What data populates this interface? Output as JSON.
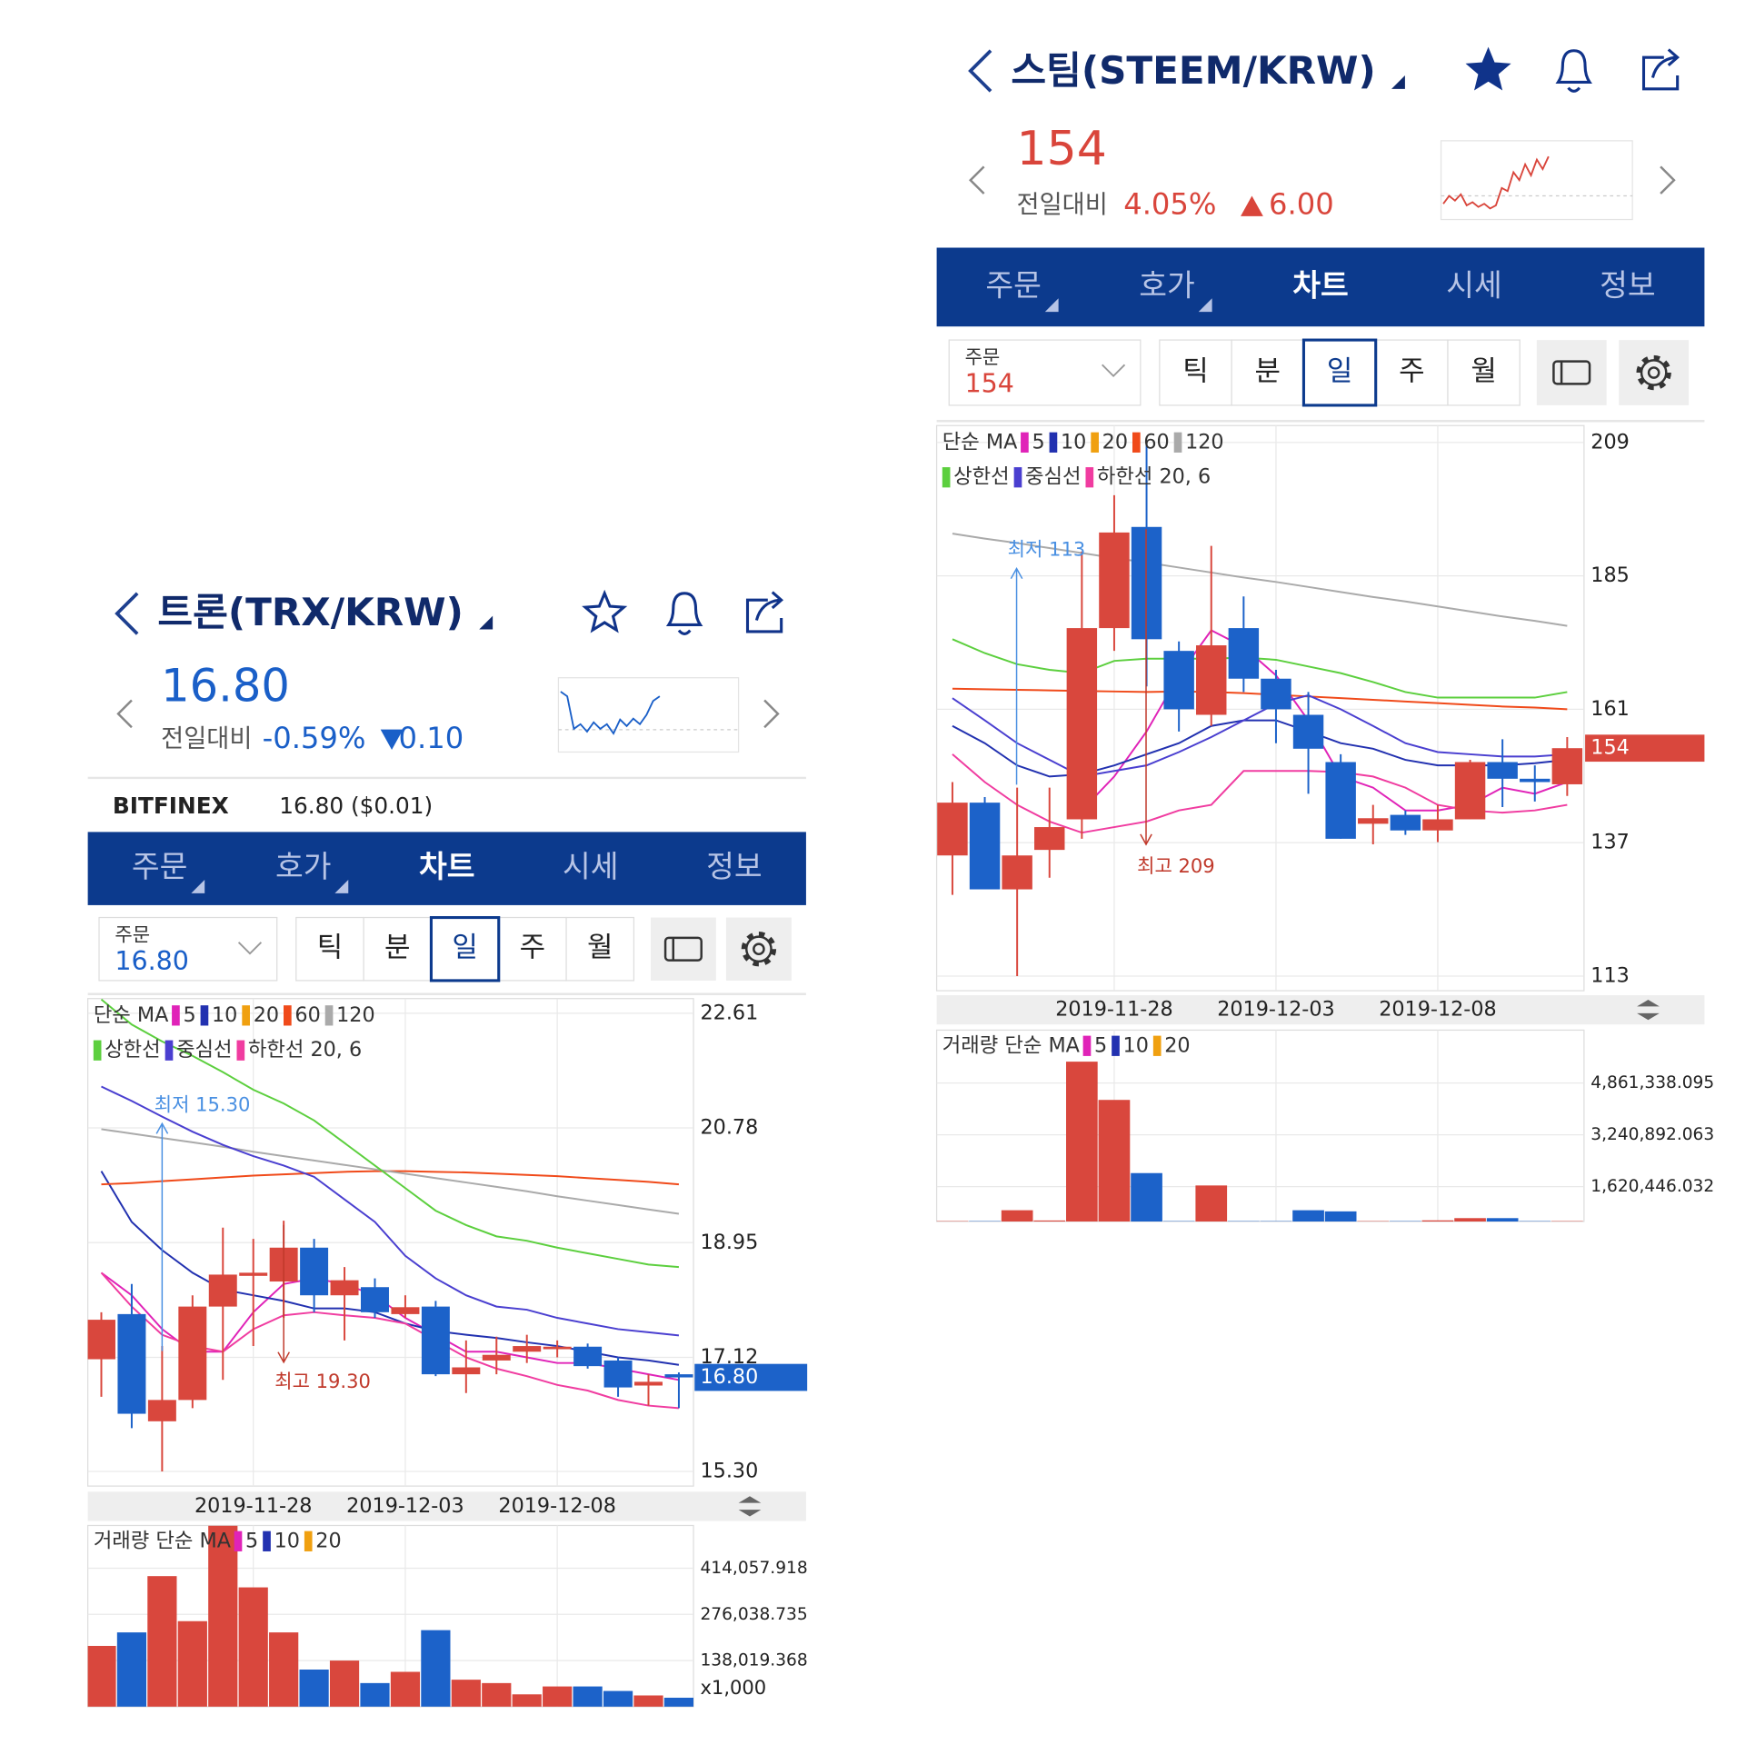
{
  "up_color": "#d9473d",
  "down_color": "#1c62c9",
  "panels": [
    {
      "title": "트론(TRX/KRW)",
      "price": "16.80",
      "price_color": "#1a5fc8",
      "change_label": "전일대비",
      "change_pct": "-0.59%",
      "change_abs": "0.10",
      "exchange": "BITFINEX",
      "exchange_price": "16.80 ($0.01)",
      "sparkline": {
        "values": [
          16.95,
          16.9,
          16.55,
          16.6,
          16.52,
          16.62,
          16.55,
          16.6,
          16.5,
          16.65,
          16.58,
          16.66,
          16.6,
          16.7,
          16.85,
          16.9
        ],
        "ylim": [
          16.3,
          17.1
        ]
      },
      "tabs": [
        "주문",
        "호가",
        "차트",
        "시세",
        "정보"
      ],
      "order_label": "주문",
      "order_price": "16.80",
      "periods": [
        "틱",
        "분",
        "일",
        "주",
        "월"
      ],
      "chart": {
        "type": "candlestick",
        "categories": [
          null,
          null,
          null,
          null,
          null,
          "2019-11-28",
          null,
          null,
          null,
          null,
          "2019-12-03",
          null,
          null,
          null,
          null,
          "2019-12-08",
          null,
          null,
          null,
          null
        ],
        "open": [
          17.09,
          17.81,
          16.1,
          16.44,
          17.93,
          18.42,
          18.33,
          18.87,
          18.11,
          18.24,
          17.81,
          17.93,
          16.85,
          17.07,
          17.21,
          17.25,
          17.29,
          17.07,
          16.67,
          16.85
        ],
        "high": [
          17.84,
          18.29,
          17.3,
          18.11,
          19.19,
          19.01,
          19.3,
          19.01,
          18.56,
          18.38,
          18.11,
          18.02,
          17.39,
          17.45,
          17.48,
          17.39,
          17.34,
          17.12,
          16.85,
          16.88
        ],
        "low": [
          16.49,
          15.99,
          15.3,
          16.31,
          16.76,
          17.3,
          17.75,
          17.84,
          17.39,
          17.75,
          17.75,
          16.82,
          16.55,
          16.85,
          17.03,
          17.12,
          16.94,
          16.49,
          16.35,
          16.31
        ],
        "close": [
          17.72,
          16.22,
          16.44,
          17.93,
          18.44,
          18.47,
          18.87,
          18.11,
          18.35,
          17.84,
          17.92,
          16.85,
          16.96,
          17.16,
          17.3,
          17.29,
          16.98,
          16.64,
          16.73,
          16.8
        ],
        "ylim": [
          15.3,
          22.61
        ],
        "yticks": [
          22.61,
          20.78,
          18.95,
          17.12,
          {
            "value": 15.3,
            "label": "15.30"
          }
        ],
        "grid": true,
        "current": {
          "value": 16.8,
          "label": "16.80"
        },
        "current_color": "#1c62c9",
        "low_label": "최저 15.30",
        "high_label": "최고 19.30",
        "ma": {
          "label": "단순 MA",
          "items": [
            {
              "name": "5",
              "color": "#e023b8",
              "values": [
                18.47,
                18.11,
                17.57,
                17.21,
                17.21,
                17.84,
                18.29,
                18.38,
                18.29,
                18.11,
                17.75,
                17.48,
                17.21,
                17.21,
                17.12,
                17.03,
                17.03,
                16.94,
                16.85,
                16.76
              ]
            },
            {
              "name": "10",
              "color": "#2231b0",
              "values": [
                20.09,
                19.28,
                18.83,
                18.47,
                18.2,
                18.11,
                18.02,
                17.9,
                17.9,
                17.84,
                17.66,
                17.54,
                17.48,
                17.43,
                17.36,
                17.3,
                17.21,
                17.12,
                17.07,
                17.0
              ]
            },
            {
              "name": "20",
              "color": "#f0a010"
            },
            {
              "name": "60",
              "color": "#f04a1a",
              "values": [
                19.88,
                19.9,
                19.93,
                19.96,
                19.99,
                20.02,
                20.04,
                20.06,
                20.08,
                20.09,
                20.09,
                20.08,
                20.07,
                20.05,
                20.03,
                20.01,
                19.98,
                19.95,
                19.92,
                19.88
              ]
            },
            {
              "name": "120",
              "color": "#aaaaaa",
              "values": [
                20.76,
                20.69,
                20.62,
                20.55,
                20.48,
                20.4,
                20.33,
                20.26,
                20.19,
                20.12,
                20.05,
                19.98,
                19.91,
                19.84,
                19.77,
                19.69,
                19.62,
                19.55,
                19.48,
                19.41
              ]
            }
          ]
        },
        "bands": {
          "items": [
            {
              "name": "상한선",
              "color": "#5ccf3e",
              "values": [
                22.83,
                22.43,
                22.16,
                21.93,
                21.67,
                21.39,
                21.17,
                20.9,
                20.54,
                20.18,
                19.82,
                19.46,
                19.23,
                19.05,
                18.98,
                18.87,
                18.78,
                18.69,
                18.6,
                18.56
              ]
            },
            {
              "name": "중심선",
              "color": "#4a3fd0",
              "values": [
                21.44,
                21.21,
                20.96,
                20.72,
                20.51,
                20.33,
                20.18,
                20.0,
                19.64,
                19.28,
                18.74,
                18.38,
                18.11,
                17.93,
                17.88,
                17.75,
                17.66,
                17.57,
                17.52,
                17.47
              ]
            },
            {
              "name": "하한선 20, 6",
              "color": "#f03ca0",
              "values": [
                18.47,
                17.93,
                17.48,
                17.3,
                17.21,
                17.57,
                17.79,
                17.84,
                17.79,
                17.75,
                17.66,
                17.39,
                17.12,
                16.94,
                16.82,
                16.68,
                16.59,
                16.44,
                16.35,
                16.31
              ]
            }
          ]
        }
      },
      "volume": {
        "type": "bar",
        "values": [
          181800,
          222200,
          390500,
          255800,
          541000,
          356800,
          222200,
          111100,
          138000,
          70700,
          104300,
          228900,
          80800,
          70700,
          37000,
          60600,
          60600,
          47100,
          33700,
          26900
        ],
        "ylim": [
          0,
          541900
        ],
        "yticks": [
          {
            "value": 414057.918,
            "label": "414,057.918"
          },
          {
            "value": 276038.735,
            "label": "276,038.735"
          },
          {
            "value": 138019.368,
            "label": "138,019.368"
          }
        ],
        "unit": "x1,000",
        "legend": {
          "label": "거래량 단순 MA",
          "items": [
            {
              "name": "5",
              "color": "#e023b8"
            },
            {
              "name": "10",
              "color": "#2231b0"
            },
            {
              "name": "20",
              "color": "#f0a010"
            }
          ]
        }
      }
    },
    {
      "title": "스팀(STEEM/KRW)",
      "price": "154",
      "price_color": "#d9453b",
      "change_label": "전일대비",
      "change_pct": "4.05%",
      "change_abs": "6.00",
      "sparkline": {
        "values": [
          140,
          145,
          142,
          146,
          139,
          141,
          138,
          140,
          137,
          139,
          150,
          148,
          160,
          155,
          165,
          158,
          168,
          162,
          170
        ],
        "ylim": [
          130,
          180
        ]
      },
      "tabs": [
        "주문",
        "호가",
        "차트",
        "시세",
        "정보"
      ],
      "order_label": "주문",
      "order_price": "154",
      "periods": [
        "틱",
        "분",
        "일",
        "주",
        "월"
      ],
      "chart": {
        "type": "candlestick",
        "categories": [
          null,
          null,
          null,
          null,
          null,
          "2019-11-28",
          null,
          null,
          null,
          null,
          "2019-12-03",
          null,
          null,
          null,
          null,
          "2019-12-08",
          null,
          null,
          null,
          null
        ],
        "open": [
          134.7,
          144.2,
          128.6,
          135.7,
          141.2,
          175.6,
          193.8,
          171.5,
          160.0,
          175.6,
          166.5,
          160.0,
          151.5,
          140.4,
          142.0,
          139.2,
          141.2,
          151.5,
          148.5,
          147.5
        ],
        "high": [
          147.9,
          145.2,
          146.9,
          146.9,
          189.4,
          199.5,
          209,
          173.2,
          190.4,
          181.3,
          168.1,
          164.1,
          152.9,
          143.8,
          142.8,
          143.8,
          151.9,
          155.6,
          150.9,
          156.0
        ],
        "low": [
          127.6,
          128.6,
          113,
          130.7,
          137.7,
          171.5,
          165.1,
          157.0,
          158.0,
          164.1,
          154.9,
          145.8,
          137.7,
          136.7,
          138.4,
          137.1,
          141.2,
          143.4,
          144.4,
          145.4
        ],
        "close": [
          144.2,
          128.6,
          134.7,
          139.8,
          175.6,
          192.8,
          173.6,
          161.0,
          172.5,
          166.5,
          161.0,
          153.9,
          137.7,
          141.4,
          139.2,
          141.2,
          151.5,
          148.5,
          147.9,
          154
        ],
        "ylim": [
          113,
          209
        ],
        "yticks": [
          209,
          185,
          161,
          137,
          113
        ],
        "grid": true,
        "current": 154,
        "current_color": "#d9473d",
        "low_label": "최저 113",
        "high_label": "최고 209",
        "ma": {
          "label": "단순 MA",
          "items": [
            {
              "name": "5",
              "color": "#e023b8",
              "values": [
                null,
                null,
                null,
                null,
                142.8,
                148.9,
                157.0,
                167.1,
                175.2,
                172.2,
                167.1,
                159.0,
                148.9,
                146.9,
                142.8,
                142.8,
                143.8,
                146.9,
                145.8,
                147.9
              ]
            },
            {
              "name": "10",
              "color": "#2231b0",
              "values": [
                158.0,
                154.9,
                150.9,
                148.9,
                149.3,
                150.9,
                152.9,
                154.9,
                158.0,
                159.0,
                159.0,
                157.0,
                154.9,
                153.9,
                151.9,
                150.9,
                150.9,
                150.9,
                151.3,
                151.9
              ]
            },
            {
              "name": "20",
              "color": "#f0a010"
            },
            {
              "name": "60",
              "color": "#f04a1a",
              "values": [
                164.7,
                164.6,
                164.5,
                164.4,
                164.3,
                164.2,
                164.1,
                164.2,
                164.1,
                163.9,
                163.6,
                163.3,
                163.0,
                162.7,
                162.4,
                162.1,
                161.8,
                161.5,
                161.3,
                161.0
              ]
            },
            {
              "name": "120",
              "color": "#aaaaaa",
              "values": [
                192.6,
                191.7,
                190.9,
                190.0,
                189.1,
                188.2,
                187.4,
                186.5,
                185.6,
                184.7,
                183.9,
                183.0,
                182.1,
                181.2,
                180.4,
                179.5,
                178.6,
                177.7,
                176.9,
                176.0
              ]
            }
          ]
        },
        "bands": {
          "items": [
            {
              "name": "상한선",
              "color": "#5ccf3e",
              "values": [
                173.6,
                171.1,
                169.1,
                168.1,
                167.5,
                169.7,
                170.1,
                170.1,
                170.1,
                170.3,
                169.9,
                168.7,
                167.5,
                165.9,
                164.1,
                163.1,
                163.1,
                163.1,
                163.1,
                164.1
              ]
            },
            {
              "name": "중심선",
              "color": "#4a3fd0",
              "values": [
                163.0,
                159.0,
                154.9,
                151.9,
                148.9,
                149.9,
                150.9,
                153.3,
                156.0,
                159.0,
                162.0,
                163.5,
                161.0,
                158.0,
                154.9,
                153.3,
                152.9,
                152.5,
                152.5,
                152.9
              ]
            },
            {
              "name": "하한선 20, 6",
              "color": "#f03ca0",
              "values": [
                152.9,
                147.9,
                143.8,
                140.8,
                138.8,
                139.8,
                140.8,
                142.8,
                143.8,
                149.9,
                149.9,
                149.9,
                149.7,
                148.9,
                146.9,
                143.8,
                142.8,
                142.4,
                142.8,
                143.8
              ]
            }
          ]
        }
      },
      "volume": {
        "type": "bar",
        "values": [
          540000,
          540000,
          881000,
          560000,
          5530000,
          4333000,
          2043000,
          540000,
          1656000,
          540000,
          540000,
          881000,
          845000,
          540000,
          540000,
          564000,
          634000,
          634000,
          540000,
          540000
        ],
        "ylim": [
          528400,
          6517000
        ],
        "yticks": [
          {
            "value": 4861338.095,
            "label": "4,861,338.095"
          },
          {
            "value": 3240892.063,
            "label": "3,240,892.063"
          },
          {
            "value": 1620446.032,
            "label": "1,620,446.032"
          }
        ],
        "legend": {
          "label": "거래량 단순 MA",
          "items": [
            {
              "name": "5",
              "color": "#e023b8"
            },
            {
              "name": "10",
              "color": "#2231b0"
            },
            {
              "name": "20",
              "color": "#f0a010"
            }
          ]
        }
      }
    }
  ]
}
